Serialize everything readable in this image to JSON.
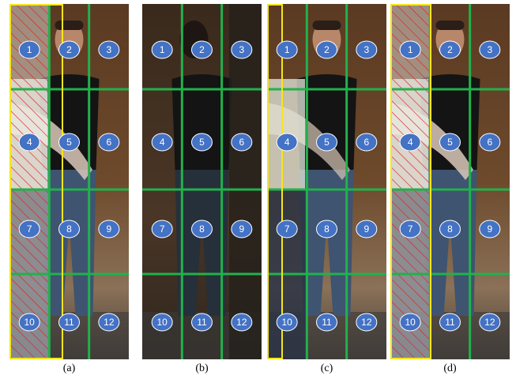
{
  "panels": [
    {
      "caption": "(a)",
      "cells": [
        1,
        2,
        3,
        4,
        5,
        6,
        7,
        8,
        9,
        10,
        11,
        12
      ]
    },
    {
      "caption": "(b)",
      "cells": [
        1,
        2,
        3,
        4,
        5,
        6,
        7,
        8,
        9,
        10,
        11,
        12
      ]
    },
    {
      "caption": "(c)",
      "cells": [
        1,
        2,
        3,
        4,
        5,
        6,
        7,
        8,
        9,
        10,
        11,
        12
      ]
    },
    {
      "caption": "(d)",
      "cells": [
        1,
        2,
        3,
        4,
        5,
        6,
        7,
        8,
        9,
        10,
        11,
        12
      ]
    }
  ]
}
